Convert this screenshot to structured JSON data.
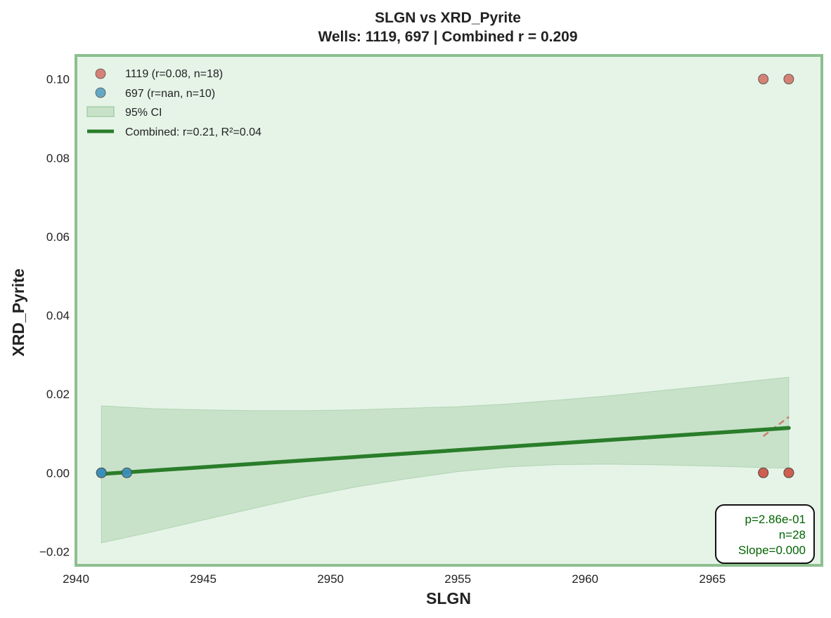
{
  "chart_data": {
    "type": "scatter",
    "title": "SLGN vs XRD_Pyrite",
    "subtitle": "Wells: 1119, 697 | Combined r = 0.209",
    "xlabel": "SLGN",
    "ylabel": "XRD_Pyrite",
    "xlim": [
      2940,
      2969.3
    ],
    "ylim": [
      -0.0235,
      0.106
    ],
    "xticks": [
      2940,
      2945,
      2950,
      2955,
      2960,
      2965
    ],
    "yticks": [
      -0.02,
      0.0,
      0.02,
      0.04,
      0.06,
      0.08,
      0.1
    ],
    "xtick_labels": [
      "2940",
      "2945",
      "2950",
      "2955",
      "2960",
      "2965"
    ],
    "ytick_labels": [
      "−0.02",
      "0.00",
      "0.02",
      "0.04",
      "0.06",
      "0.08",
      "0.10"
    ],
    "grid": false,
    "legend_position": "top-left",
    "series": [
      {
        "name": "1119 (r=0.08, n=18)",
        "color": "#cd5c50",
        "x": [
          2967,
          2968,
          2967,
          2968,
          2967,
          2968,
          2967,
          2968
        ],
        "y": [
          0.1,
          0.1,
          0.0,
          0.0,
          0.0,
          0.0,
          0.0,
          0.0
        ],
        "trend": {
          "x": [
            2967,
            2968
          ],
          "y": [
            0.0093,
            0.0142
          ]
        }
      },
      {
        "name": "697 (r=nan, n=10)",
        "color": "#3a8fb7",
        "x": [
          2941,
          2942,
          2941,
          2942,
          2941
        ],
        "y": [
          0.0,
          0.0,
          0.0,
          0.0,
          0.0
        ]
      }
    ],
    "ci": {
      "name": "95% CI",
      "color": "#8fbf8f",
      "x": [
        2941,
        2943,
        2945,
        2947,
        2949,
        2951,
        2953,
        2955,
        2957,
        2959,
        2961,
        2963,
        2965,
        2966,
        2967,
        2968
      ],
      "upper": [
        0.017,
        0.0163,
        0.016,
        0.0158,
        0.0158,
        0.016,
        0.0164,
        0.0168,
        0.0175,
        0.0185,
        0.0196,
        0.0209,
        0.0222,
        0.0229,
        0.0236,
        0.0243
      ],
      "lower": [
        -0.0178,
        -0.015,
        -0.012,
        -0.009,
        -0.0061,
        -0.0036,
        -0.0015,
        0.0003,
        0.0015,
        0.0021,
        0.0022,
        0.002,
        0.0017,
        0.0015,
        0.0013,
        0.0012
      ]
    },
    "fit": {
      "name": "Combined: r=0.21, R²=0.04",
      "color": "#2a7d2a",
      "x": [
        2941,
        2968
      ],
      "y": [
        -0.0003,
        0.0114
      ]
    },
    "stats_box": {
      "p": "p=2.86e-01",
      "n": "n=28",
      "slope": "Slope=0.000",
      "color": "#006400"
    },
    "plot_background": "#e6f4e8",
    "frame_color": "#8dbf8f"
  }
}
